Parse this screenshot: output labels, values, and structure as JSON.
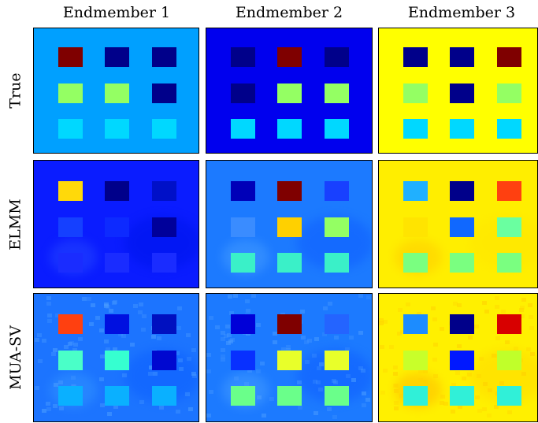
{
  "columns": [
    "Endmember 1",
    "Endmember 2",
    "Endmember 3"
  ],
  "rows": [
    "True",
    "ELMM",
    "MUA-SV"
  ],
  "palette": {
    "dark_navy": "#00008a",
    "dark_red": "#7f0000",
    "light_green": "#94ff63",
    "cyan": "#00d8ff",
    "yellow": "#ffff00",
    "blue": "#0000ff",
    "sky_blue": "#00a0ff"
  },
  "panels": [
    [
      {
        "bg": "#00a0ff",
        "squares": [
          [
            "#7f0000",
            "#00008a",
            "#00008a"
          ],
          [
            "#94ff63",
            "#94ff63",
            "#00008a"
          ],
          [
            "#00d8ff",
            "#00d8ff",
            "#00d8ff"
          ]
        ],
        "blotches": [],
        "noise": false
      },
      {
        "bg": "#0000ee",
        "squares": [
          [
            "#00008a",
            "#7f0000",
            "#00008a"
          ],
          [
            "#00008a",
            "#94ff63",
            "#94ff63"
          ],
          [
            "#00d8ff",
            "#00d8ff",
            "#00d8ff"
          ]
        ],
        "blotches": [],
        "noise": false
      },
      {
        "bg": "#ffff00",
        "squares": [
          [
            "#00008a",
            "#00008a",
            "#7f0000"
          ],
          [
            "#94ff63",
            "#00008a",
            "#94ff63"
          ],
          [
            "#00d8ff",
            "#00d8ff",
            "#00d8ff"
          ]
        ],
        "blotches": [],
        "noise": false
      }
    ],
    [
      {
        "bg": "#0a1cff",
        "squares": [
          [
            "#ffd90a",
            "#00008a",
            "#0010c8"
          ],
          [
            "#1540ff",
            "#0d2aff",
            "#00009a"
          ],
          [
            "#1a2cff",
            "#1a2cff",
            "#1a2cff"
          ]
        ],
        "blotches": [
          "#1e3cff",
          "#0016f0"
        ],
        "noise": false
      },
      {
        "bg": "#1c7aff",
        "squares": [
          [
            "#0000b8",
            "#7f0000",
            "#1840ff"
          ],
          [
            "#3a8cff",
            "#ffd000",
            "#94ff63"
          ],
          [
            "#3af0c8",
            "#3af0c8",
            "#3af0c8"
          ]
        ],
        "blotches": [
          "#3a94ff",
          "#1264ff"
        ],
        "noise": false
      },
      {
        "bg": "#ffee00",
        "squares": [
          [
            "#20b0ff",
            "#00008a",
            "#ff4010"
          ],
          [
            "#ffe400",
            "#1068ff",
            "#6affa0"
          ],
          [
            "#7aff80",
            "#7aff80",
            "#7aff80"
          ]
        ],
        "blotches": [
          "#ffd400",
          "#ffe800"
        ],
        "noise": false
      }
    ],
    [
      {
        "bg": "#1c74ff",
        "squares": [
          [
            "#ff4010",
            "#0010e0",
            "#0010c0"
          ],
          [
            "#4affc8",
            "#36ffd0",
            "#0008d0"
          ],
          [
            "#0ab0ff",
            "#0ab0ff",
            "#0ab0ff"
          ]
        ],
        "blotches": [
          "#2c8cff",
          "#1064ff"
        ],
        "noise": true,
        "speck": "#4a9cff"
      },
      {
        "bg": "#1c7aff",
        "squares": [
          [
            "#0000d8",
            "#7f0000",
            "#2464ff"
          ],
          [
            "#0830ff",
            "#e8ff2a",
            "#e8ff2a"
          ],
          [
            "#6aff8a",
            "#6aff8a",
            "#6aff8a"
          ]
        ],
        "blotches": [
          "#3a94ff",
          "#1264ff"
        ],
        "noise": true,
        "speck": "#4a9cff"
      },
      {
        "bg": "#fff000",
        "squares": [
          [
            "#1c8cff",
            "#00008a",
            "#d80000"
          ],
          [
            "#c8ff2a",
            "#0018ff",
            "#c0ff2a"
          ],
          [
            "#30f0d8",
            "#30f0d8",
            "#30f0d8"
          ]
        ],
        "blotches": [
          "#ffc800",
          "#ffe000"
        ],
        "noise": true,
        "speck": "#ffd000"
      }
    ]
  ]
}
